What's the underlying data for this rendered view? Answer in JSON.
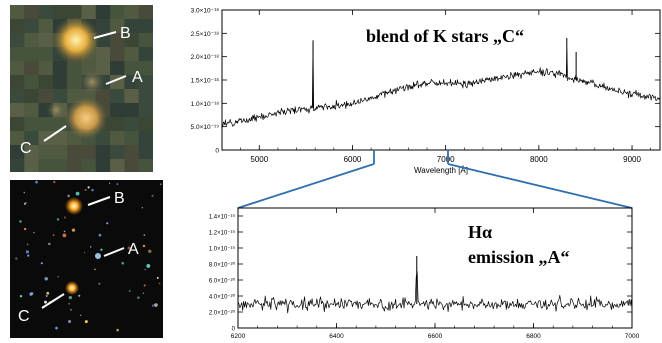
{
  "colors": {
    "connector": "#2f6fb0",
    "spectrum": "#000000"
  },
  "images": {
    "top": {
      "labels": [
        "B",
        "A",
        "C"
      ]
    },
    "bottom": {
      "labels": [
        "B",
        "A",
        "C"
      ]
    }
  },
  "chart_data": [
    {
      "type": "line",
      "xlabel": "Wavelength [Å]",
      "xlim": [
        4600,
        9300
      ],
      "ylim": [
        0,
        3e-18
      ],
      "x_ticks": [
        5000,
        6000,
        7000,
        8000,
        9000
      ],
      "y_ticks": [
        0,
        5e-19,
        1e-18,
        1.5e-18,
        2e-18,
        2.5e-18,
        3e-18
      ],
      "y_tick_labels": [
        "0",
        "5.0×10⁻¹⁹",
        "1.0×10⁻¹⁸",
        "1.5×10⁻¹⁸",
        "2.0×10⁻¹⁸",
        "2.5×10⁻¹⁸",
        "3.0×10⁻¹⁸"
      ],
      "annotation": "blend of K stars „C“",
      "series": [
        {
          "x": [
            4600,
            4800,
            5000,
            5200,
            5400,
            5600,
            5800,
            6000,
            6200,
            6400,
            6600,
            6800,
            7000,
            7200,
            7400,
            7600,
            7800,
            8000,
            8200,
            8400,
            8600,
            8800,
            9000,
            9300
          ],
          "values": [
            5.5e-19,
            6.2e-19,
            7e-19,
            8e-19,
            8.6e-19,
            9e-19,
            9.5e-19,
            1e-18,
            1.12e-18,
            1.25e-18,
            1.35e-18,
            1.45e-18,
            1.45e-18,
            1.4e-18,
            1.48e-18,
            1.55e-18,
            1.62e-18,
            1.68e-18,
            1.65e-18,
            1.5e-18,
            1.4e-18,
            1.3e-18,
            1.2e-18,
            1.1e-18
          ]
        }
      ],
      "features": [
        {
          "x": 5577,
          "value": 2.35e-18
        },
        {
          "x": 8300,
          "value": 2.4e-18
        },
        {
          "x": 8400,
          "value": 2.1e-18
        }
      ]
    },
    {
      "type": "line",
      "xlim": [
        6200,
        7000
      ],
      "ylim": [
        0,
        1.5e-19
      ],
      "x_ticks": [
        6200,
        6400,
        6600,
        6800,
        7000
      ],
      "y_ticks": [
        0,
        2e-20,
        4e-20,
        6e-20,
        8e-20,
        1e-19,
        1.2e-19,
        1.4e-19
      ],
      "y_tick_labels": [
        "0",
        "2.0×10⁻²⁰",
        "4.0×10⁻²⁰",
        "6.0×10⁻²⁰",
        "8.0×10⁻²⁰",
        "1.0×10⁻¹⁹",
        "1.2×10⁻¹⁹",
        "1.4×10⁻¹⁹"
      ],
      "annotation": [
        "Hα",
        "emission „A“"
      ],
      "series": [
        {
          "x": [
            6200,
            7000
          ],
          "values": [
            3e-20,
            3e-20
          ]
        }
      ],
      "features": [
        {
          "x": 6563,
          "value": 9e-20
        }
      ]
    }
  ]
}
